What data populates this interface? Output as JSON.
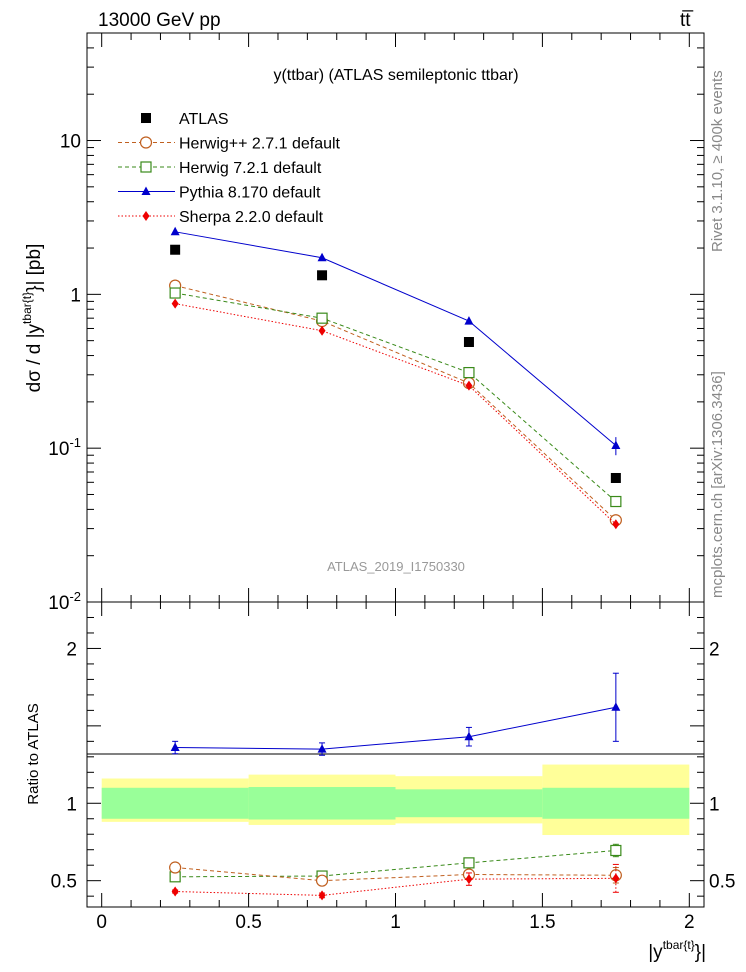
{
  "header": {
    "left": "13000 GeV pp",
    "right": "tt̅"
  },
  "side_text": {
    "upper": "Rivet 3.1.10, ≥ 400k events",
    "lower": "mcplots.cern.ch [arXiv:1306.3436]"
  },
  "chart_data": [
    {
      "type": "line",
      "title": "y(ttbar) (ATLAS semileptonic ttbar)",
      "ylabel": "dσ / d |y^{tbar{t}}| [pb]",
      "yscale": "log",
      "ylim": [
        0.01,
        50
      ],
      "xlim": [
        -0.05,
        2.05
      ],
      "watermark": "ATLAS_2019_I1750330",
      "y_tick_labels": [
        "10^{-2}",
        "10^{-1}",
        "1",
        "10"
      ],
      "legend_position": "top-left",
      "x": [
        0.25,
        0.75,
        1.25,
        1.75
      ],
      "series": [
        {
          "name": "ATLAS",
          "values": [
            1.95,
            1.33,
            0.49,
            0.064
          ],
          "color": "#000000",
          "marker": "square-filled"
        },
        {
          "name": "Herwig++ 2.7.1 default",
          "values": [
            1.14,
            0.67,
            0.265,
            0.034
          ],
          "color": "#c06020",
          "marker": "circle-open",
          "dash": "dashed"
        },
        {
          "name": "Herwig 7.2.1 default",
          "values": [
            1.02,
            0.7,
            0.31,
            0.045
          ],
          "color": "#3a8a1a",
          "marker": "square-open",
          "dash": "dashed"
        },
        {
          "name": "Pythia 8.170 default",
          "values": [
            2.55,
            1.73,
            0.67,
            0.104
          ],
          "errors": [
            0.05,
            0.04,
            0.02,
            0.014
          ],
          "color": "#0000cc",
          "marker": "triangle-filled",
          "dash": "solid"
        },
        {
          "name": "Sherpa 2.2.0 default",
          "values": [
            0.87,
            0.58,
            0.255,
            0.032
          ],
          "color": "#ee0000",
          "marker": "diamond-filled",
          "dash": "dotted"
        }
      ]
    },
    {
      "type": "line",
      "ylabel": "Ratio to ATLAS",
      "xlabel": "|y^{tbar{t}}|",
      "ylim": [
        0.33,
        2.3
      ],
      "xlim": [
        -0.05,
        2.05
      ],
      "x_tick_labels": [
        "0",
        "0.5",
        "1",
        "1.5",
        "2"
      ],
      "y_tick_labels": [
        "0.5",
        "1",
        "2"
      ],
      "bins": [
        0,
        0.5,
        1.0,
        1.5,
        2.0
      ],
      "bands": {
        "stat_lo": [
          0.9,
          0.895,
          0.91,
          0.9
        ],
        "stat_hi": [
          1.1,
          1.105,
          1.09,
          1.1
        ],
        "total_lo": [
          0.88,
          0.86,
          0.87,
          0.795
        ],
        "total_hi": [
          1.16,
          1.185,
          1.175,
          1.25
        ],
        "stat_color": "#99ff99",
        "total_color": "#ffff99"
      },
      "x": [
        0.25,
        0.75,
        1.25,
        1.75
      ],
      "series": [
        {
          "name": "Pythia 8.170 default",
          "values": [
            1.36,
            1.35,
            1.43,
            1.62
          ],
          "errors": [
            0.04,
            0.04,
            0.06,
            0.22
          ],
          "color": "#0000cc",
          "marker": "triangle-filled",
          "dash": "solid"
        },
        {
          "name": "Herwig 7.2.1 default",
          "values": [
            0.525,
            0.53,
            0.615,
            0.695
          ],
          "errors": [
            0.01,
            0.01,
            0.015,
            0.04
          ],
          "color": "#3a8a1a",
          "marker": "square-open",
          "dash": "dashed"
        },
        {
          "name": "Herwig++ 2.7.1 default",
          "values": [
            0.585,
            0.5,
            0.54,
            0.535
          ],
          "errors": [
            0.01,
            0.01,
            0.02,
            0.05
          ],
          "color": "#c06020",
          "marker": "circle-open",
          "dash": "dashed"
        },
        {
          "name": "Sherpa 2.2.0 default",
          "values": [
            0.43,
            0.405,
            0.51,
            0.515
          ],
          "errors": [
            0.01,
            0.015,
            0.04,
            0.09
          ],
          "color": "#ee0000",
          "marker": "diamond-filled",
          "dash": "dotted"
        }
      ]
    }
  ]
}
